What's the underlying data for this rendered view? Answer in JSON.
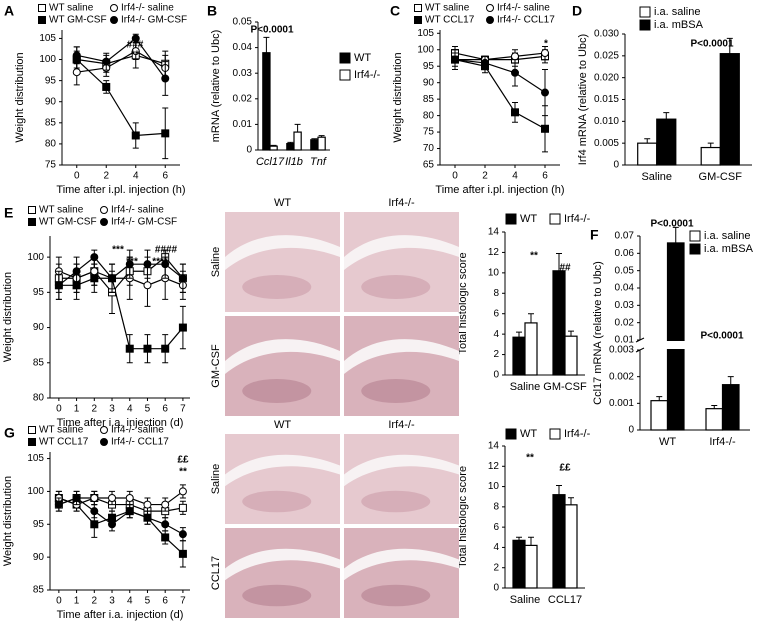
{
  "chart_data": [
    {
      "type": "line",
      "panel": "A",
      "ylabel": "Weight distribution",
      "xlabel": "Time after i.pl. injection (h)",
      "x": [
        0,
        2,
        4,
        6
      ],
      "xlim": [
        -1,
        7
      ],
      "xticks": [
        0,
        2,
        4,
        6
      ],
      "ylim": [
        75,
        107
      ],
      "yticks": [
        75,
        80,
        85,
        90,
        95,
        100,
        105
      ],
      "series": [
        {
          "name": "WT saline",
          "marker": "square",
          "color": "#ffffff",
          "values": [
            100,
            99,
            101,
            99
          ],
          "errors": [
            3,
            2,
            3,
            3
          ]
        },
        {
          "name": "WT GM-CSF",
          "marker": "square",
          "color": "#000000",
          "values": [
            100,
            93.5,
            82,
            82.5
          ],
          "errors": [
            2,
            1.5,
            3,
            6
          ]
        },
        {
          "name": "Irf4-/- saline",
          "marker": "circle",
          "color": "#ffffff",
          "values": [
            97,
            98,
            102,
            98
          ],
          "errors": [
            3,
            2,
            2,
            3
          ]
        },
        {
          "name": "Irf4-/- GM-CSF",
          "marker": "circle",
          "color": "#000000",
          "values": [
            101,
            99.5,
            105,
            95.5
          ],
          "errors": [
            2,
            2,
            1,
            4
          ]
        }
      ],
      "annotations": [
        "###",
        "**"
      ]
    },
    {
      "type": "bar",
      "panel": "B",
      "ylabel": "mRNA (relative to Ubc)",
      "categories": [
        "Ccl17",
        "Il1b",
        "Tnf"
      ],
      "category_style": "italic",
      "ylim": [
        0,
        0.05
      ],
      "yticks": [
        0,
        0.01,
        0.02,
        0.03,
        0.04,
        0.05
      ],
      "series": [
        {
          "name": "WT",
          "color": "#000000",
          "values": [
            0.038,
            0.0025,
            0.004
          ],
          "errors": [
            0.006,
            0.0005,
            0.0004
          ]
        },
        {
          "name": "Irf4-/-",
          "color": "#ffffff",
          "values": [
            0.0015,
            0.007,
            0.005
          ],
          "errors": [
            0.0003,
            0.003,
            0.0006
          ]
        }
      ],
      "annotations": [
        "P<0.0001"
      ]
    },
    {
      "type": "line",
      "panel": "C",
      "ylabel": "Weight distribution",
      "xlabel": "Time after i.pl. injection (h)",
      "x": [
        0,
        2,
        4,
        6
      ],
      "xlim": [
        -1,
        7
      ],
      "xticks": [
        0,
        2,
        4,
        6
      ],
      "ylim": [
        65,
        106
      ],
      "yticks": [
        65,
        70,
        75,
        80,
        85,
        90,
        95,
        100,
        105
      ],
      "series": [
        {
          "name": "WT saline",
          "marker": "square",
          "color": "#ffffff",
          "values": [
            99,
            97,
            97,
            98
          ],
          "errors": [
            2,
            1,
            2,
            2
          ]
        },
        {
          "name": "WT CCL17",
          "marker": "square",
          "color": "#000000",
          "values": [
            97,
            95,
            81,
            76
          ],
          "errors": [
            3,
            2,
            3,
            7
          ]
        },
        {
          "name": "Irf4-/- saline",
          "marker": "circle",
          "color": "#ffffff",
          "values": [
            97,
            97,
            98,
            99
          ],
          "errors": [
            2,
            1,
            2,
            2
          ]
        },
        {
          "name": "Irf4-/- CCL17",
          "marker": "circle",
          "color": "#000000",
          "values": [
            97,
            96,
            93,
            87
          ],
          "errors": [
            3,
            2,
            4,
            7
          ]
        }
      ],
      "annotations": [
        "*"
      ]
    },
    {
      "type": "bar",
      "panel": "D",
      "ylabel": "Irf4 mRNA (relative to Ubc)",
      "categories": [
        "Saline",
        "GM-CSF"
      ],
      "ylim": [
        0,
        0.03
      ],
      "yticks": [
        0,
        0.005,
        {
          "value": 0.01,
          "label": "0.010"
        },
        0.015,
        {
          "value": 0.02,
          "label": "0.020"
        },
        0.025,
        {
          "value": 0.03,
          "label": "0.030"
        }
      ],
      "series": [
        {
          "name": "i.a. saline",
          "color": "#ffffff",
          "values": [
            0.005,
            0.004
          ],
          "errors": [
            0.001,
            0.001
          ]
        },
        {
          "name": "i.a. mBSA",
          "color": "#000000",
          "values": [
            0.0105,
            0.0255
          ],
          "errors": [
            0.0015,
            0.0035
          ]
        }
      ],
      "annotations": [
        "P<0.0001"
      ]
    },
    {
      "type": "line",
      "panel": "E",
      "ylabel": "Weight distribution",
      "xlabel": "Time after i.a. injection (d)",
      "x": [
        0,
        1,
        2,
        3,
        4,
        5,
        6,
        7
      ],
      "xlim": [
        -0.5,
        7.4
      ],
      "xticks": [
        0,
        1,
        2,
        3,
        4,
        5,
        6,
        7
      ],
      "ylim": [
        80,
        103
      ],
      "yticks": [
        80,
        85,
        90,
        95,
        100
      ],
      "series": [
        {
          "name": "WT saline",
          "marker": "square",
          "color": "#ffffff",
          "values": [
            97,
            97,
            98,
            95,
            98,
            98,
            100,
            97
          ],
          "errors": [
            2,
            2,
            2,
            3,
            2,
            2,
            1,
            2
          ]
        },
        {
          "name": "WT GM-CSF",
          "marker": "square",
          "color": "#000000",
          "values": [
            96,
            96,
            97,
            97,
            87,
            87,
            87,
            90
          ],
          "errors": [
            2,
            2,
            2,
            2,
            2,
            2,
            2,
            3
          ]
        },
        {
          "name": "Irf4-/- saline",
          "marker": "circle",
          "color": "#ffffff",
          "values": [
            98,
            97,
            98,
            97,
            97,
            96,
            97,
            96
          ],
          "errors": [
            2,
            2,
            2,
            2,
            3,
            3,
            3,
            2
          ]
        },
        {
          "name": "Irf4-/- GM-CSF",
          "marker": "circle",
          "color": "#000000",
          "values": [
            96,
            98,
            100,
            97,
            99,
            99,
            99,
            97
          ],
          "errors": [
            2,
            2,
            1,
            2,
            2,
            2,
            2,
            2
          ]
        }
      ],
      "annotations": [
        "***",
        "####",
        "***",
        "****"
      ]
    },
    {
      "type": "bar",
      "ylabel": "Total histologic score",
      "categories": [
        "Saline",
        "GM-CSF"
      ],
      "ylim": [
        0,
        14
      ],
      "yticks": [
        0,
        2,
        4,
        6,
        8,
        10,
        12,
        14
      ],
      "series": [
        {
          "name": "WT",
          "color": "#000000",
          "values": [
            3.7,
            10.2
          ],
          "errors": [
            0.5,
            1.7
          ]
        },
        {
          "name": "Irf4-/-",
          "color": "#ffffff",
          "values": [
            5.1,
            3.8
          ],
          "errors": [
            0.9,
            0.5
          ]
        }
      ],
      "annotations": [
        "**",
        "##"
      ]
    },
    {
      "type": "bar",
      "panel": "F",
      "ylabel": "Ccl17 mRNA (relative to Ubc)",
      "categories": [
        "WT",
        "Irf4-/-"
      ],
      "ylim": [
        0,
        0.07
      ],
      "ybreak": [
        0.003,
        0.01
      ],
      "yticks": [
        0,
        0.001,
        0.002,
        0.003,
        0.01,
        0.02,
        0.03,
        0.04,
        0.05,
        0.06,
        0.07
      ],
      "series": [
        {
          "name": "i.a. saline",
          "color": "#ffffff",
          "values": [
            0.0011,
            0.0008
          ],
          "errors": [
            0.00015,
            0.00012
          ]
        },
        {
          "name": "i.a. mBSA",
          "color": "#000000",
          "values": [
            0.066,
            0.0017
          ],
          "errors": [
            0.009,
            0.0003
          ]
        }
      ],
      "annotations": [
        "P<0.0001",
        "P<0.0001"
      ]
    },
    {
      "type": "line",
      "panel": "G",
      "ylabel": "Weight distribution",
      "xlabel": "Time after i.a. injection (d)",
      "x": [
        0,
        1,
        2,
        3,
        4,
        5,
        6,
        7
      ],
      "xlim": [
        -0.5,
        7.4
      ],
      "xticks": [
        0,
        1,
        2,
        3,
        4,
        5,
        6,
        7
      ],
      "ylim": [
        85,
        106
      ],
      "yticks": [
        85,
        90,
        95,
        100,
        105
      ],
      "series": [
        {
          "name": "WT saline",
          "marker": "square",
          "color": "#ffffff",
          "values": [
            98,
            99,
            99,
            98,
            98,
            97,
            97,
            97.5
          ],
          "errors": [
            1,
            1,
            1,
            1,
            1,
            1,
            1,
            1
          ]
        },
        {
          "name": "WT CCL17",
          "marker": "square",
          "color": "#000000",
          "values": [
            99,
            98,
            95,
            96,
            97,
            96,
            93,
            90.5
          ],
          "errors": [
            1,
            1,
            2,
            1,
            1,
            1,
            1,
            2
          ]
        },
        {
          "name": "Irf4-/- saline",
          "marker": "circle",
          "color": "#ffffff",
          "values": [
            99,
            98,
            99,
            99,
            99,
            98,
            98,
            100
          ],
          "errors": [
            1,
            1,
            1,
            1,
            1,
            1,
            1,
            1
          ]
        },
        {
          "name": "Irf4-/- CCL17",
          "marker": "circle",
          "color": "#000000",
          "values": [
            98,
            99,
            97,
            95,
            97,
            96,
            95,
            93.5
          ],
          "errors": [
            1,
            1,
            1,
            1,
            1,
            1,
            1,
            1
          ]
        }
      ],
      "annotations": [
        "££",
        "**"
      ]
    },
    {
      "type": "bar",
      "ylabel": "Total histologic score",
      "categories": [
        "Saline",
        "CCL17"
      ],
      "ylim": [
        0,
        14
      ],
      "yticks": [
        0,
        2,
        4,
        6,
        8,
        10,
        12,
        14
      ],
      "series": [
        {
          "name": "WT",
          "color": "#000000",
          "values": [
            4.7,
            9.2
          ],
          "errors": [
            0.3,
            0.9
          ]
        },
        {
          "name": "Irf4-/-",
          "color": "#ffffff",
          "values": [
            4.2,
            8.2
          ],
          "errors": [
            0.8,
            0.7
          ]
        }
      ],
      "annotations": [
        "**",
        "££"
      ]
    }
  ],
  "histology": [
    {
      "columns": [
        "WT",
        "Irf4-/-"
      ],
      "rows": [
        "Saline",
        "GM-CSF"
      ]
    },
    {
      "columns": [
        "WT",
        "Irf4-/-"
      ],
      "rows": [
        "Saline",
        "CCL17"
      ]
    }
  ]
}
